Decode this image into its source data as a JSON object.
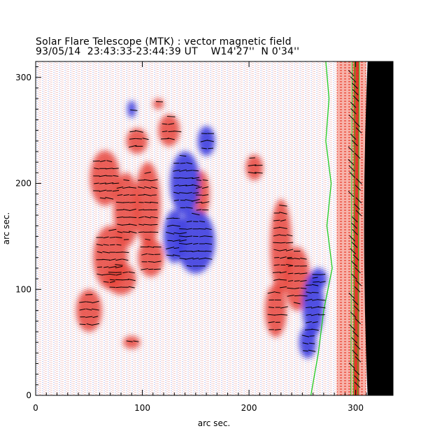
{
  "chart_data": {
    "type": "heatmap",
    "title": "Solar Flare Telescope (MTK) : vector magnetic field",
    "subtitle_date": "93/05/14",
    "subtitle_time": "23:43:33-23:44:39 UT",
    "subtitle_position": "W14'27''  N 0'34''",
    "xlabel": "arc sec.",
    "ylabel": "arc sec.",
    "xlim": [
      0,
      335
    ],
    "ylim": [
      0,
      315
    ],
    "xticks": [
      0,
      100,
      200,
      300
    ],
    "yticks": [
      0,
      100,
      200,
      300
    ],
    "colors": {
      "positive": "#e8453c",
      "negative": "#3f3fe0",
      "neutral_line": "#22cc22",
      "limb": "#000000",
      "vector": "#000000"
    },
    "positive_regions": [
      {
        "x": 65,
        "y": 205,
        "rx": 14,
        "ry": 26
      },
      {
        "x": 85,
        "y": 175,
        "rx": 12,
        "ry": 35
      },
      {
        "x": 70,
        "y": 130,
        "rx": 16,
        "ry": 30
      },
      {
        "x": 105,
        "y": 180,
        "rx": 12,
        "ry": 40
      },
      {
        "x": 108,
        "y": 130,
        "rx": 12,
        "ry": 18
      },
      {
        "x": 155,
        "y": 190,
        "rx": 8,
        "ry": 22
      },
      {
        "x": 95,
        "y": 240,
        "rx": 10,
        "ry": 12
      },
      {
        "x": 125,
        "y": 250,
        "rx": 10,
        "ry": 15
      },
      {
        "x": 80,
        "y": 110,
        "rx": 14,
        "ry": 15
      },
      {
        "x": 230,
        "y": 140,
        "rx": 10,
        "ry": 45
      },
      {
        "x": 245,
        "y": 110,
        "rx": 12,
        "ry": 30
      },
      {
        "x": 225,
        "y": 80,
        "rx": 10,
        "ry": 25
      },
      {
        "x": 205,
        "y": 215,
        "rx": 8,
        "ry": 12
      },
      {
        "x": 90,
        "y": 50,
        "rx": 8,
        "ry": 6
      },
      {
        "x": 115,
        "y": 275,
        "rx": 5,
        "ry": 5
      },
      {
        "x": 50,
        "y": 80,
        "rx": 12,
        "ry": 20
      }
    ],
    "negative_regions": [
      {
        "x": 140,
        "y": 200,
        "rx": 14,
        "ry": 30
      },
      {
        "x": 150,
        "y": 145,
        "rx": 18,
        "ry": 30
      },
      {
        "x": 130,
        "y": 150,
        "rx": 10,
        "ry": 25
      },
      {
        "x": 160,
        "y": 240,
        "rx": 8,
        "ry": 14
      },
      {
        "x": 260,
        "y": 85,
        "rx": 10,
        "ry": 30
      },
      {
        "x": 255,
        "y": 50,
        "rx": 8,
        "ry": 15
      },
      {
        "x": 265,
        "y": 110,
        "rx": 8,
        "ry": 10
      },
      {
        "x": 90,
        "y": 270,
        "rx": 4,
        "ry": 8
      }
    ],
    "limb_x": 302,
    "neutral_line": [
      [
        258,
        0
      ],
      [
        265,
        40
      ],
      [
        270,
        80
      ],
      [
        278,
        120
      ],
      [
        273,
        160
      ],
      [
        277,
        200
      ],
      [
        272,
        240
      ],
      [
        275,
        280
      ],
      [
        272,
        315
      ]
    ]
  }
}
